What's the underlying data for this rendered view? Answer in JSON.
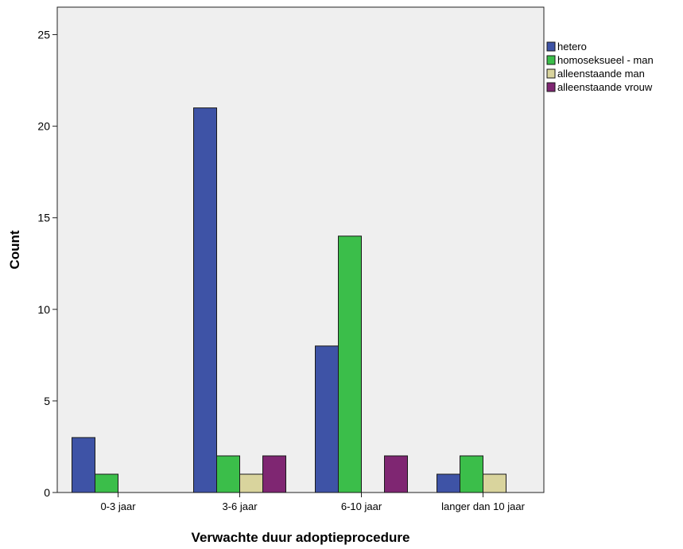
{
  "chart_data": {
    "type": "bar",
    "xlabel": "Verwachte duur adoptieprocedure",
    "ylabel": "Count",
    "ylim": [
      0,
      26.5
    ],
    "yticks": [
      0,
      5,
      10,
      15,
      20,
      25
    ],
    "categories": [
      "0-3 jaar",
      "3-6 jaar",
      "6-10 jaar",
      "langer dan 10 jaar"
    ],
    "series": [
      {
        "name": "hetero",
        "values": [
          3,
          21,
          8,
          1
        ],
        "color": "#3e53a6"
      },
      {
        "name": "homoseksueel - man",
        "values": [
          1,
          2,
          14,
          2
        ],
        "color": "#3bbe4a"
      },
      {
        "name": "alleenstaande man",
        "values": [
          0,
          1,
          0,
          1
        ],
        "color": "#d9d49d"
      },
      {
        "name": "alleenstaande vrouw",
        "values": [
          0,
          2,
          2,
          0
        ],
        "color": "#7f2672"
      }
    ],
    "legend_position": "right",
    "plot_background": "#efefef",
    "grid": false
  }
}
